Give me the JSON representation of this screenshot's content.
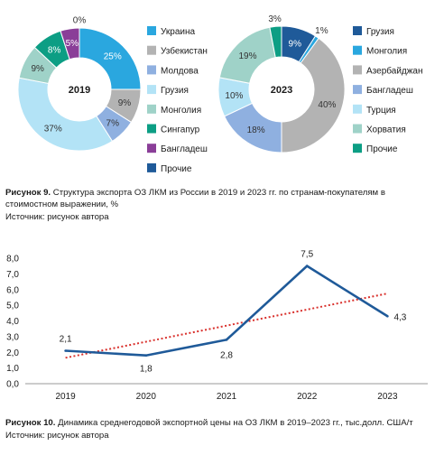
{
  "figure9": {
    "caption_label": "Рисунок 9.",
    "caption_text": "Структура экспорта ОЗ ЛКМ из России в 2019 и 2023 гг. по странам-покупателям в стоимостном выражении, %",
    "source": "Источник: рисунок автора"
  },
  "figure10": {
    "caption_label": "Рисунок 10.",
    "caption_text": "Динамика среднегодовой экспортной цены на ОЗ ЛКМ в 2019–2023 гг., тыс.долл. США/т",
    "source": "Источник: рисунок автора"
  },
  "chart_data": [
    {
      "type": "pie",
      "center_label": "2019",
      "slices": [
        {
          "name": "Украина",
          "value": 25,
          "label": "25%",
          "color": "#2aa7df"
        },
        {
          "name": "Узбекистан",
          "value": 9,
          "label": "9%",
          "color": "#b3b3b3"
        },
        {
          "name": "Молдова",
          "value": 7,
          "label": "7%",
          "color": "#8fb0e0"
        },
        {
          "name": "Грузия",
          "value": 37,
          "label": "37%",
          "color": "#b3e3f6"
        },
        {
          "name": "Монголия",
          "value": 9,
          "label": "9%",
          "color": "#9fd2c8"
        },
        {
          "name": "Сингапур",
          "value": 8,
          "label": "8%",
          "color": "#0c9e84"
        },
        {
          "name": "Бангладеш",
          "value": 5,
          "label": "5%",
          "color": "#8a3e98"
        },
        {
          "name": "Прочие",
          "value": 0,
          "label": "0%",
          "color": "#1f5a99"
        }
      ]
    },
    {
      "type": "pie",
      "center_label": "2023",
      "slices": [
        {
          "name": "Грузия",
          "value": 9,
          "label": "9%",
          "color": "#1f5a99"
        },
        {
          "name": "Монголия",
          "value": 1,
          "label": "1%",
          "color": "#2aa7df"
        },
        {
          "name": "Азербайджан",
          "value": 40,
          "label": "40%",
          "color": "#b3b3b3"
        },
        {
          "name": "Бангладеш",
          "value": 18,
          "label": "18%",
          "color": "#8fb0e0"
        },
        {
          "name": "Турция",
          "value": 10,
          "label": "10%",
          "color": "#b3e3f6"
        },
        {
          "name": "Хорватия",
          "value": 19,
          "label": "19%",
          "color": "#9fd2c8"
        },
        {
          "name": "Прочие",
          "value": 3,
          "label": "3%",
          "color": "#0c9e84"
        }
      ]
    },
    {
      "type": "line",
      "x": [
        "2019",
        "2020",
        "2021",
        "2022",
        "2023"
      ],
      "series": [
        {
          "values": [
            2.1,
            1.8,
            2.8,
            7.5,
            4.3
          ],
          "labels": [
            "2,1",
            "1,8",
            "2,8",
            "7,5",
            "4,3"
          ],
          "color": "#1f5a99"
        }
      ],
      "trendline": {
        "start": 1.65,
        "end": 5.75,
        "color": "#d9302c",
        "style": "dotted"
      },
      "yticks": [
        "0,0",
        "1,0",
        "2,0",
        "3,0",
        "4,0",
        "5,0",
        "6,0",
        "7,0",
        "8,0"
      ],
      "ylim": [
        0,
        8
      ],
      "grid": false
    }
  ]
}
